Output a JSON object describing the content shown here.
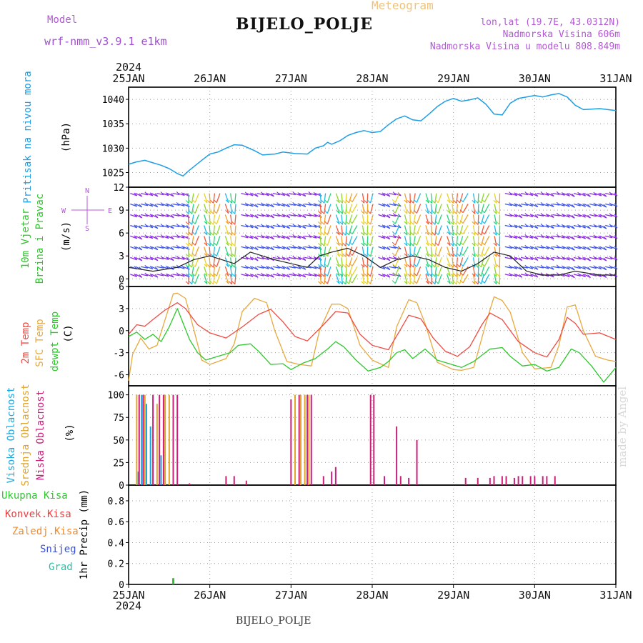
{
  "header": {
    "model_label": "Model",
    "model_name": "wrf-nmm_v3.9.1 e1km",
    "station": "BIJELO_POLJE",
    "meteogram_label": "Meteogram",
    "lonlat": "lon,lat (19.7E, 43.0312N)",
    "altitude": "Nadmorska Visina 606m",
    "model_altitude": "Nadmorska Visina u modelu 808.849m"
  },
  "footer": {
    "station": "BIJELO_POLJE",
    "credit": "made by Angel"
  },
  "colors": {
    "pressure": "#1e9fe6",
    "temp": "#ef4b43",
    "sfc_temp": "#e7a93f",
    "dewpt": "#2cc82a",
    "high_cloud": "#1aa7e0",
    "mid_cloud": "#e0a42c",
    "low_cloud": "#cc1f7a",
    "precip_total": "#2ec82e",
    "precip_conv": "#ee3d3d",
    "precip_strat": "#f08a2c",
    "snow": "#3a4fd8",
    "graupel": "#27bfa8"
  },
  "chart_data": [
    {
      "type": "line",
      "panel": "pressure",
      "x_unit": "day (Jan 2024)",
      "ylabel": [
        "Pritisak na nivou mora",
        "(hPa)"
      ],
      "yticks": [
        1025,
        1030,
        1035,
        1040
      ],
      "ylim": [
        1022,
        1042.5
      ],
      "xlim": [
        25,
        31
      ],
      "grid": true,
      "series": [
        {
          "x": [
            25.0,
            25.1,
            25.2,
            25.3,
            25.4,
            25.5,
            25.6,
            25.67,
            25.75,
            25.9,
            26.0,
            26.1,
            26.2,
            26.3,
            26.4,
            26.55,
            26.65,
            26.8,
            26.9,
            27.05,
            27.2,
            27.3,
            27.4,
            27.45,
            27.5,
            27.6,
            27.7,
            27.8,
            27.9,
            28.0,
            28.1,
            28.2,
            28.3,
            28.4,
            28.5,
            28.6,
            28.7,
            28.8,
            28.9,
            29.0,
            29.1,
            29.2,
            29.3,
            29.4,
            29.5,
            29.6,
            29.7,
            29.8,
            29.9,
            30.0,
            30.1,
            30.2,
            30.3,
            30.4,
            30.5,
            30.6,
            30.7,
            30.8,
            30.9,
            31.0
          ],
          "values": [
            1026.7,
            1027.2,
            1027.5,
            1027.0,
            1026.5,
            1025.8,
            1024.8,
            1024.3,
            1025.5,
            1027.5,
            1028.8,
            1029.2,
            1030.0,
            1030.7,
            1030.6,
            1029.5,
            1028.6,
            1028.8,
            1029.2,
            1028.9,
            1028.8,
            1030.0,
            1030.5,
            1031.2,
            1030.8,
            1031.5,
            1032.6,
            1033.2,
            1033.6,
            1033.2,
            1033.4,
            1034.8,
            1036.0,
            1036.6,
            1035.8,
            1035.6,
            1037.0,
            1038.5,
            1039.6,
            1040.2,
            1039.6,
            1039.9,
            1040.3,
            1039.0,
            1037.0,
            1036.8,
            1039.2,
            1040.2,
            1040.5,
            1040.8,
            1040.5,
            1040.9,
            1041.2,
            1040.5,
            1038.8,
            1037.9,
            1038.0,
            1038.1,
            1037.9,
            1037.7
          ]
        }
      ]
    },
    {
      "type": "barb",
      "panel": "wind",
      "ylabel": [
        "10m Vjetar",
        "Brzina i Pravac",
        "(m/s)"
      ],
      "compass": [
        "N",
        "E",
        "W",
        "S"
      ],
      "yticks": [
        0,
        3,
        6,
        9,
        12
      ],
      "ylim": [
        -1,
        12
      ],
      "grid": true,
      "series": [
        {
          "name": "10m wind speed",
          "x": [
            25.0,
            25.3,
            25.6,
            25.8,
            26.0,
            26.3,
            26.5,
            26.8,
            27.0,
            27.2,
            27.35,
            27.5,
            27.7,
            27.9,
            28.1,
            28.3,
            28.5,
            28.7,
            28.9,
            29.1,
            29.3,
            29.5,
            29.7,
            29.9,
            30.1,
            30.3,
            30.5,
            30.8,
            31.0
          ],
          "values": [
            1.5,
            1.0,
            1.5,
            2.5,
            3.0,
            2.0,
            3.5,
            2.5,
            2.0,
            1.5,
            3.0,
            3.5,
            4.0,
            3.0,
            1.5,
            2.5,
            3.0,
            2.5,
            1.5,
            1.0,
            2.0,
            3.5,
            3.0,
            1.0,
            0.5,
            0.5,
            1.0,
            0.5,
            0.5
          ]
        }
      ]
    },
    {
      "type": "line",
      "panel": "temperature",
      "ylabel": [
        "2m Temp",
        "SFC Temp",
        "dewpt Temp",
        "(C)"
      ],
      "yticks": [
        -6,
        -3,
        0,
        3,
        6
      ],
      "ylim": [
        -7.5,
        6
      ],
      "grid": true,
      "series": [
        {
          "name": "2m Temp",
          "x": [
            25.0,
            25.1,
            25.2,
            25.3,
            25.45,
            25.6,
            25.7,
            25.85,
            26.0,
            26.2,
            26.4,
            26.6,
            26.75,
            26.9,
            27.05,
            27.2,
            27.4,
            27.55,
            27.7,
            27.85,
            28.0,
            28.2,
            28.35,
            28.45,
            28.6,
            28.75,
            28.9,
            29.05,
            29.2,
            29.35,
            29.45,
            29.6,
            29.8,
            30.0,
            30.15,
            30.3,
            30.4,
            30.5,
            30.6,
            30.8,
            31.0
          ],
          "values": [
            -0.5,
            0.8,
            0.6,
            1.5,
            2.8,
            3.8,
            3.0,
            0.8,
            -0.3,
            -1.0,
            0.5,
            2.2,
            2.9,
            1.2,
            -0.8,
            -1.4,
            0.8,
            2.6,
            2.4,
            -0.5,
            -2.0,
            -2.6,
            0.2,
            2.1,
            1.6,
            -1.0,
            -2.8,
            -3.5,
            -2.2,
            0.8,
            2.4,
            1.5,
            -1.5,
            -3.0,
            -3.6,
            -1.2,
            1.8,
            1.0,
            -0.5,
            -0.3,
            -1.2
          ]
        },
        {
          "name": "SFC Temp",
          "x": [
            25.0,
            25.05,
            25.15,
            25.25,
            25.35,
            25.45,
            25.55,
            25.6,
            25.7,
            25.8,
            25.9,
            26.0,
            26.2,
            26.3,
            26.4,
            26.55,
            26.7,
            26.8,
            26.95,
            27.1,
            27.25,
            27.35,
            27.5,
            27.6,
            27.7,
            27.85,
            28.0,
            28.2,
            28.3,
            28.45,
            28.55,
            28.65,
            28.8,
            29.0,
            29.1,
            29.25,
            29.4,
            29.5,
            29.6,
            29.7,
            29.85,
            30.0,
            30.2,
            30.3,
            30.4,
            30.5,
            30.6,
            30.75,
            30.9,
            31.0
          ],
          "values": [
            -6.8,
            -3.2,
            -1.0,
            -2.5,
            -2.0,
            1.5,
            5.0,
            5.1,
            4.4,
            0.3,
            -4.0,
            -4.6,
            -3.8,
            -1.8,
            2.6,
            4.4,
            3.8,
            0.0,
            -4.2,
            -4.6,
            -4.8,
            0.0,
            3.6,
            3.6,
            3.0,
            -2.0,
            -4.0,
            -5.0,
            0.5,
            4.2,
            3.8,
            1.0,
            -4.3,
            -5.3,
            -5.4,
            -5.0,
            1.0,
            4.6,
            4.1,
            2.5,
            -3.0,
            -5.2,
            -5.0,
            -2.0,
            3.2,
            3.5,
            0.0,
            -3.5,
            -4.0,
            -4.2
          ]
        },
        {
          "name": "dewpt Temp",
          "x": [
            25.0,
            25.1,
            25.2,
            25.3,
            25.4,
            25.5,
            25.6,
            25.75,
            25.85,
            25.95,
            26.1,
            26.25,
            26.35,
            26.5,
            26.6,
            26.75,
            26.9,
            27.0,
            27.15,
            27.3,
            27.45,
            27.55,
            27.65,
            27.8,
            27.95,
            28.1,
            28.2,
            28.3,
            28.4,
            28.5,
            28.65,
            28.8,
            28.95,
            29.1,
            29.25,
            29.45,
            29.6,
            29.7,
            29.85,
            30.0,
            30.15,
            30.3,
            30.45,
            30.55,
            30.7,
            30.85,
            31.0
          ],
          "values": [
            -0.8,
            -0.2,
            -1.2,
            -0.5,
            -1.5,
            0.5,
            3.0,
            -1.2,
            -3.0,
            -4.0,
            -3.5,
            -3.0,
            -2.0,
            -1.8,
            -2.8,
            -4.6,
            -4.5,
            -5.3,
            -4.4,
            -3.8,
            -2.5,
            -1.5,
            -2.2,
            -4.0,
            -5.5,
            -5.0,
            -4.2,
            -3.0,
            -2.6,
            -3.8,
            -2.5,
            -4.0,
            -4.5,
            -5.0,
            -4.2,
            -2.5,
            -2.3,
            -3.5,
            -4.8,
            -4.6,
            -5.5,
            -5.0,
            -2.5,
            -3.0,
            -4.8,
            -7.0,
            -5.0
          ]
        }
      ]
    },
    {
      "type": "bar",
      "panel": "cloud",
      "ylabel": [
        "Visoka Oblacnost",
        "Srednja Oblacnost",
        "Niska Oblacnost",
        "(%)"
      ],
      "yticks": [
        0,
        25,
        50,
        75,
        100
      ],
      "ylim": [
        0,
        110
      ],
      "grid": true,
      "series": [
        {
          "name": "Visoka Oblacnost",
          "x": [
            25.12,
            25.16,
            25.22,
            25.27,
            25.4
          ],
          "values": [
            15,
            100,
            90,
            65,
            33
          ]
        },
        {
          "name": "Srednja Oblacnost",
          "x": [
            25.1,
            25.2,
            25.35,
            25.45,
            25.5,
            27.05,
            27.12,
            27.17,
            27.22
          ],
          "values": [
            100,
            100,
            90,
            100,
            100,
            100,
            100,
            100,
            100
          ]
        },
        {
          "name": "Niska Oblacnost",
          "x": [
            25.13,
            25.18,
            25.3,
            25.38,
            25.43,
            25.55,
            25.6,
            25.75,
            26.2,
            26.3,
            26.45,
            27.0,
            27.1,
            27.2,
            27.25,
            27.4,
            27.5,
            27.55,
            27.98,
            28.02,
            28.15,
            28.3,
            28.35,
            28.45,
            28.55,
            29.15,
            29.3,
            29.45,
            29.5,
            29.6,
            29.65,
            29.75,
            29.8,
            29.85,
            29.95,
            30.0,
            30.1,
            30.15,
            30.25
          ],
          "values": [
            100,
            100,
            100,
            100,
            100,
            100,
            100,
            2,
            10,
            10,
            5,
            95,
            100,
            100,
            100,
            10,
            15,
            20,
            100,
            100,
            10,
            65,
            10,
            8,
            50,
            8,
            8,
            8,
            10,
            10,
            10,
            8,
            10,
            10,
            10,
            10,
            10,
            10,
            10
          ]
        }
      ]
    },
    {
      "type": "bar",
      "panel": "precip",
      "ylabel": [
        "1hr Precip (mm)"
      ],
      "legend": [
        "Ukupna Kisa",
        "Konvek.Kisa",
        "Zaledj.Kisa",
        "Snijeg",
        "Grad"
      ],
      "yticks": [
        0,
        0.2,
        0.4,
        0.6,
        0.8
      ],
      "ylim": [
        0,
        0.95
      ],
      "grid": true,
      "series": [
        {
          "name": "Ukupna Kisa",
          "x": [
            25.55
          ],
          "values": [
            0.06
          ]
        }
      ]
    }
  ],
  "x_axis": {
    "top_year": "2024",
    "bottom_year": "2024",
    "day_labels": [
      "25JAN",
      "26JAN",
      "27JAN",
      "28JAN",
      "29JAN",
      "30JAN",
      "31JAN"
    ]
  }
}
